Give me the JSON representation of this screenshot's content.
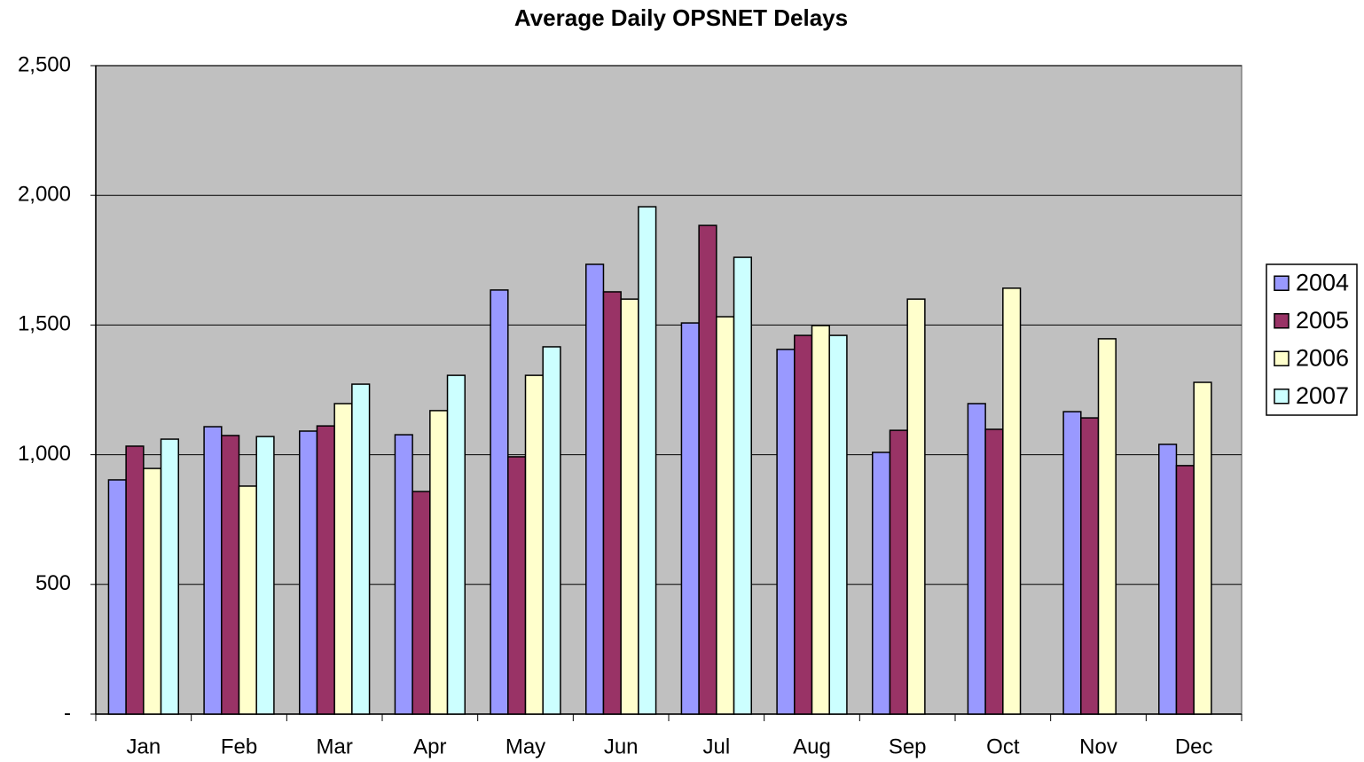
{
  "chart_data": {
    "type": "bar",
    "title": "Average Daily OPSNET Delays",
    "categories": [
      "Jan",
      "Feb",
      "Mar",
      "Apr",
      "May",
      "Jun",
      "Jul",
      "Aug",
      "Sep",
      "Oct",
      "Nov",
      "Dec"
    ],
    "series": [
      {
        "name": "2004",
        "color": "#9999ff",
        "values": [
          903,
          1108,
          1091,
          1077,
          1635,
          1734,
          1508,
          1406,
          1009,
          1197,
          1166,
          1040
        ]
      },
      {
        "name": "2005",
        "color": "#993366",
        "values": [
          1033,
          1074,
          1111,
          858,
          992,
          1628,
          1884,
          1460,
          1094,
          1098,
          1142,
          958
        ]
      },
      {
        "name": "2006",
        "color": "#ffffcc",
        "values": [
          947,
          879,
          1197,
          1170,
          1306,
          1600,
          1532,
          1498,
          1600,
          1642,
          1447,
          1279
        ]
      },
      {
        "name": "2007",
        "color": "#ccffff",
        "values": [
          1060,
          1070,
          1272,
          1306,
          1416,
          1956,
          1761,
          1460,
          null,
          null,
          null,
          null
        ]
      }
    ],
    "ylim": [
      0,
      2500
    ],
    "yticks": [
      {
        "value": 0,
        "label": "-"
      },
      500,
      {
        "value": 1000,
        "label": "1,000"
      },
      {
        "value": 1500,
        "label": "1,500"
      },
      {
        "value": 2000,
        "label": "2,000"
      },
      {
        "value": 2500,
        "label": "2,500"
      }
    ],
    "grid": true,
    "legend": "right",
    "plot_background": "#c0c0c0"
  }
}
